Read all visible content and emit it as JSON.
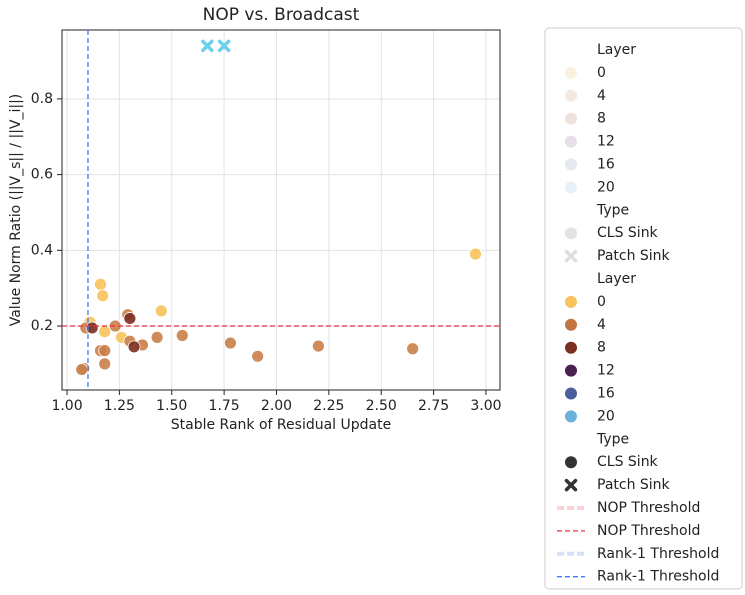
{
  "chart_data": {
    "type": "scatter",
    "title": "NOP vs. Broadcast",
    "x_label": "Stable Rank of Residual Update",
    "y_label": "Value Norm Ratio (||V_s|| / ||V_i||)",
    "xlim": [
      0.976,
      3.067
    ],
    "ylim": [
      0.031,
      0.982
    ],
    "xticks": [
      {
        "value": 1,
        "label": "1.00"
      },
      {
        "value": 1.25,
        "label": "1.25"
      },
      {
        "value": 1.5,
        "label": "1.50"
      },
      {
        "value": 1.75,
        "label": "1.75"
      },
      {
        "value": 2,
        "label": "2.00"
      },
      {
        "value": 2.25,
        "label": "2.25"
      },
      {
        "value": 2.5,
        "label": "2.50"
      },
      {
        "value": 2.75,
        "label": "2.75"
      },
      {
        "value": 3,
        "label": "3.00"
      }
    ],
    "yticks": [
      0.2,
      0.4,
      0.6,
      0.8
    ],
    "grid": true,
    "series": [
      {
        "color": "#f7c35a",
        "marker": "circle",
        "x": [
          2.95,
          1.16,
          1.17,
          1.45,
          1.11,
          1.18,
          1.26
        ],
        "values": [
          0.39,
          0.31,
          0.28,
          0.24,
          0.21,
          0.185,
          0.17
        ]
      },
      {
        "color": "#c98048",
        "marker": "circle",
        "x": [
          1.09,
          1.23,
          1.29,
          1.3,
          1.55,
          1.43,
          1.36,
          1.78,
          2.2,
          1.91,
          2.65,
          1.16,
          1.18,
          1.18,
          1.08,
          1.07
        ],
        "values": [
          0.195,
          0.2,
          0.23,
          0.16,
          0.175,
          0.17,
          0.15,
          0.155,
          0.147,
          0.12,
          0.14,
          0.135,
          0.135,
          0.1,
          0.088,
          0.085
        ]
      },
      {
        "color": "#7b2e22",
        "marker": "circle",
        "x": [
          1.12,
          1.3,
          1.32
        ],
        "values": [
          0.195,
          0.22,
          0.145
        ]
      },
      {
        "color": "#6ad0ee",
        "marker": "x",
        "x": [
          1.67,
          1.75
        ],
        "values": [
          0.94,
          0.94
        ]
      }
    ],
    "hlines": [
      {
        "value": 0.2,
        "color": "#e8303e"
      }
    ],
    "vlines": [
      {
        "value": 1.1,
        "color": "#3c7ef0"
      }
    ],
    "legend": [
      {
        "label": "Layer"
      },
      {
        "label": "0",
        "color": "#fbf1df",
        "marker": "circle"
      },
      {
        "label": "4",
        "color": "#f3e8e2",
        "marker": "circle"
      },
      {
        "label": "8",
        "color": "#eee2df",
        "marker": "circle"
      },
      {
        "label": "12",
        "color": "#e7dfe8",
        "marker": "circle"
      },
      {
        "label": "16",
        "color": "#e6e8f0",
        "marker": "circle"
      },
      {
        "label": "20",
        "color": "#e6f1f8",
        "marker": "circle"
      },
      {
        "label": "Type"
      },
      {
        "label": "CLS Sink",
        "color": "#e3e3e3",
        "marker": "circle"
      },
      {
        "label": "Patch Sink",
        "color": "#dedede",
        "marker": "x"
      },
      {
        "label": "Layer"
      },
      {
        "label": "0",
        "color": "#f7c35a",
        "marker": "circle"
      },
      {
        "label": "4",
        "color": "#c27341",
        "marker": "circle"
      },
      {
        "label": "8",
        "color": "#7b2e22",
        "marker": "circle"
      },
      {
        "label": "12",
        "color": "#4a2150",
        "marker": "circle"
      },
      {
        "label": "16",
        "color": "#4b5f9b",
        "marker": "circle"
      },
      {
        "label": "20",
        "color": "#6ab2dc",
        "marker": "circle"
      },
      {
        "label": "Type"
      },
      {
        "label": "CLS Sink",
        "color": "#333333",
        "marker": "circle"
      },
      {
        "label": "Patch Sink",
        "color": "#333333",
        "marker": "x"
      },
      {
        "label": "NOP Threshold",
        "color": "#f8d3d8",
        "marker": "band"
      },
      {
        "label": "NOP Threshold",
        "color": "#e8303e",
        "marker": "dash"
      },
      {
        "label": "Rank-1 Threshold",
        "color": "#d6e0f8",
        "marker": "band"
      },
      {
        "label": "Rank-1 Threshold",
        "color": "#3c7ef0",
        "marker": "dash"
      }
    ]
  }
}
